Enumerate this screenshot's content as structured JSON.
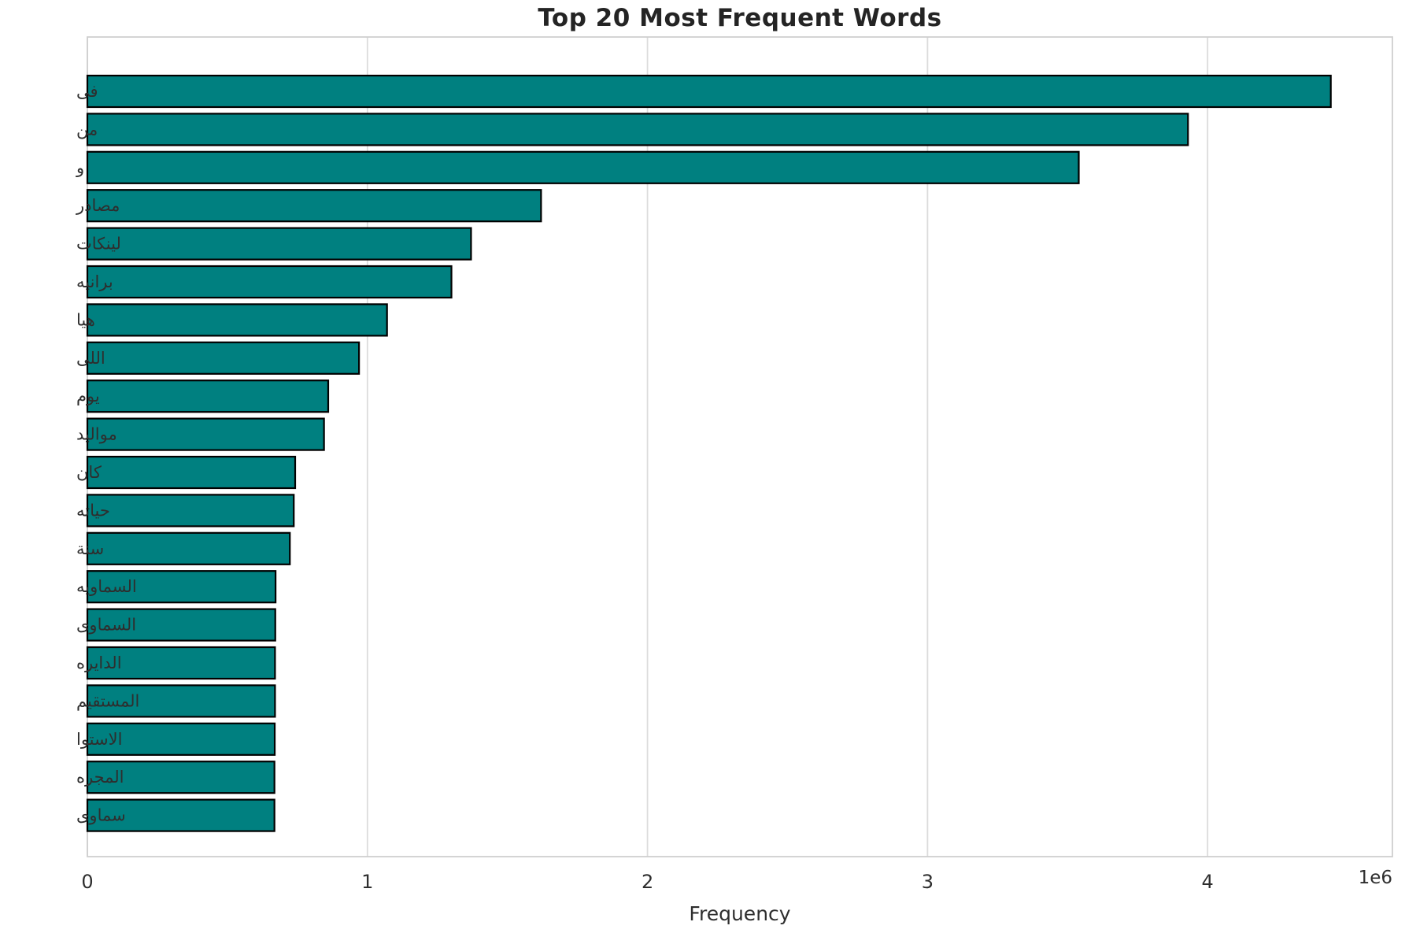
{
  "figure": {
    "background_color": "#ffffff"
  },
  "colors": {
    "bar_fill": "#008080",
    "bar_edge": "#000000",
    "grid": "#dcdcdc",
    "spine": "#cfcfcf",
    "title_text": "#242424",
    "tick_text": "#2e2e2e"
  },
  "chart_data": {
    "type": "bar",
    "orientation": "horizontal",
    "title": "Top 20 Most Frequent Words",
    "xlabel": "Frequency",
    "ylabel": "",
    "offset_text": "1e6",
    "categories": [
      "فى",
      "من",
      "و",
      "مصادر",
      "لينكات",
      "برانيه",
      "هيا",
      "اللى",
      "يوم",
      "مواليد",
      "كان",
      "حياته",
      "سنة",
      "السماويه",
      "السماوى",
      "الدايره",
      "المستقيم",
      "الاستوا",
      "المجره",
      "سماوى"
    ],
    "values": [
      4440000,
      3930000,
      3540000,
      1620000,
      1370000,
      1300000,
      1070000,
      970000,
      860000,
      845000,
      742000,
      737000,
      723000,
      672000,
      671000,
      670000,
      670000,
      669000,
      668000,
      668000
    ],
    "xlim": [
      0,
      4660000
    ],
    "xticks": [
      0,
      1000000,
      2000000,
      3000000,
      4000000
    ],
    "xtick_labels": [
      "0",
      "1",
      "2",
      "3",
      "4"
    ],
    "grid": true,
    "legend_position": "none"
  }
}
